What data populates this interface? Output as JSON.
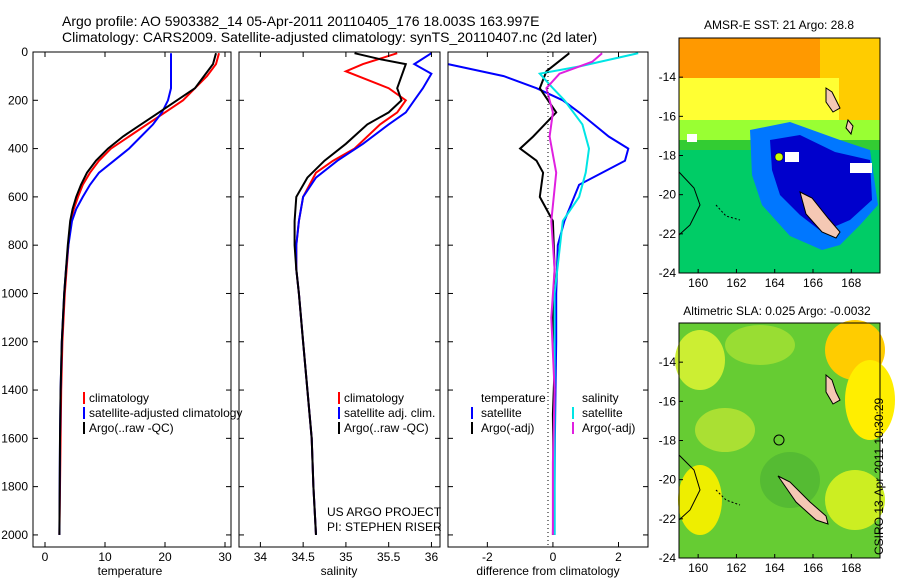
{
  "header": {
    "line1": "Argo profile: AO 5903382_14 05-Apr-2011 20110405_176 18.003S 163.997E",
    "line2": "Climatology: CARS2009. Satellite-adjusted climatology: synTS_20110407.nc (2d later)"
  },
  "credit": "CSIRO 13-Apr-2011 10:30:29",
  "colors": {
    "red": "#ff0000",
    "blue": "#0000ff",
    "black": "#000000",
    "cyan": "#00e5e5",
    "magenta": "#e020e0"
  },
  "chart_data": [
    {
      "type": "line",
      "id": "temperature",
      "xlabel": "temperature",
      "xlim": [
        -2,
        31
      ],
      "ylim": [
        2050,
        0
      ],
      "xticks": [
        0,
        10,
        20,
        30
      ],
      "yticks": [
        0,
        200,
        400,
        600,
        800,
        1000,
        1200,
        1400,
        1600,
        1800,
        2000
      ],
      "legend": [
        "climatology",
        "satellite-adjusted climatology",
        "Argo(..raw -QC)"
      ],
      "series": [
        {
          "name": "climatology",
          "color": "red",
          "x": [
            29,
            28.5,
            27,
            25,
            23,
            20,
            17,
            14,
            11,
            9,
            7.5,
            6.3,
            5.5,
            4.8,
            4.3,
            3.9,
            3.6,
            3.3,
            3.1,
            2.9,
            2.7,
            2.6,
            2.5,
            2.4
          ],
          "y": [
            5,
            50,
            100,
            150,
            200,
            250,
            300,
            350,
            400,
            450,
            500,
            550,
            600,
            650,
            700,
            800,
            900,
            1000,
            1100,
            1200,
            1400,
            1600,
            1800,
            2000
          ]
        },
        {
          "name": "satellite-adjusted climatology",
          "color": "blue",
          "x": [
            21,
            21,
            21,
            21,
            20.5,
            19.5,
            18,
            16,
            14,
            11.5,
            9,
            7.5,
            6.3,
            5.2,
            4.5,
            3.9,
            3.5,
            3.2,
            3,
            2.8,
            2.6,
            2.5,
            2.4
          ],
          "y": [
            5,
            50,
            100,
            150,
            200,
            250,
            300,
            350,
            400,
            450,
            500,
            550,
            600,
            650,
            700,
            800,
            900,
            1000,
            1100,
            1200,
            1400,
            1600,
            2000
          ]
        },
        {
          "name": "Argo(..raw -QC)",
          "color": "black",
          "x": [
            28.5,
            28,
            26.5,
            25,
            22,
            19,
            16,
            13,
            10.5,
            8.5,
            7,
            6,
            5.2,
            4.6,
            4.2,
            3.8,
            3.5,
            3.2,
            3,
            2.8,
            2.6,
            2.5,
            2.4
          ],
          "y": [
            5,
            50,
            100,
            150,
            200,
            250,
            300,
            350,
            400,
            450,
            500,
            550,
            600,
            650,
            700,
            800,
            900,
            1000,
            1100,
            1200,
            1400,
            1600,
            2000
          ]
        }
      ]
    },
    {
      "type": "line",
      "id": "salinity",
      "xlabel": "salinity",
      "xlim": [
        33.75,
        36.1
      ],
      "ylim": [
        2050,
        0
      ],
      "xticks": [
        34,
        34.5,
        35,
        35.5,
        36
      ],
      "yticks": [
        0,
        200,
        400,
        600,
        800,
        1000,
        1200,
        1400,
        1600,
        1800,
        2000
      ],
      "legend": [
        "climatology",
        "satellite adj. clim.",
        "Argo(..raw -QC)"
      ],
      "annotation": [
        "US ARGO PROJECT",
        "PI: STEPHEN RISER"
      ],
      "series": [
        {
          "name": "climatology",
          "color": "red",
          "x": [
            35.6,
            35.2,
            35,
            35.5,
            35.7,
            35.6,
            35.4,
            35.1,
            34.85,
            34.65,
            34.5,
            34.45,
            34.42,
            34.42,
            34.45,
            34.5,
            34.55,
            34.6,
            34.62,
            34.65
          ],
          "y": [
            5,
            50,
            80,
            150,
            200,
            250,
            300,
            400,
            450,
            500,
            600,
            700,
            800,
            900,
            1000,
            1200,
            1400,
            1600,
            1800,
            2000
          ]
        },
        {
          "name": "satellite adj. clim.",
          "color": "blue",
          "x": [
            36,
            35.8,
            36,
            35.9,
            35.8,
            35.7,
            35.5,
            35.2,
            34.9,
            34.65,
            34.5,
            34.45,
            34.42,
            34.42,
            34.45,
            34.5,
            34.55,
            34.6,
            34.62,
            34.65
          ],
          "y": [
            5,
            50,
            90,
            150,
            200,
            250,
            300,
            380,
            450,
            520,
            600,
            700,
            800,
            900,
            1000,
            1200,
            1400,
            1600,
            1800,
            2000
          ]
        },
        {
          "name": "Argo(..raw -QC)",
          "color": "black",
          "x": [
            35.1,
            35.4,
            35.7,
            35.6,
            35.65,
            35.5,
            35.25,
            35,
            34.75,
            34.55,
            34.42,
            34.4,
            34.4,
            34.42,
            34.45,
            34.5,
            34.55,
            34.6,
            34.62,
            34.65
          ],
          "y": [
            5,
            30,
            50,
            150,
            200,
            250,
            300,
            380,
            450,
            520,
            600,
            700,
            800,
            900,
            1000,
            1200,
            1400,
            1600,
            1800,
            2000
          ]
        }
      ]
    },
    {
      "type": "line",
      "id": "difference",
      "xlabel": "difference from climatology",
      "xlim": [
        -3.2,
        2.9
      ],
      "ylim": [
        2050,
        0
      ],
      "xticks": [
        -2,
        0,
        2
      ],
      "yticks": [
        0,
        200,
        400,
        600,
        800,
        1000,
        1200,
        1400,
        1600,
        1800,
        2000
      ],
      "legend_title_left": "temperature",
      "legend_title_right": "salinity",
      "legend": [
        "satellite",
        "Argo(-adj)",
        "satellite",
        "Argo(-adj)"
      ],
      "series": [
        {
          "name": "temperature satellite",
          "color": "blue",
          "x": [
            -3.2,
            -1.5,
            -0.5,
            0.3,
            0.8,
            1.7,
            2.3,
            2.2,
            1.5,
            0.8,
            0.35,
            0.15,
            0.1,
            0.1,
            0.08,
            0.06,
            0.05,
            0.05
          ],
          "y": [
            50,
            100,
            150,
            200,
            250,
            350,
            400,
            450,
            500,
            550,
            700,
            800,
            1000,
            1200,
            1400,
            1600,
            1800,
            2000
          ]
        },
        {
          "name": "temperature Argo(-adj)",
          "color": "black",
          "x": [
            0.5,
            -0.2,
            -0.4,
            0.1,
            -0.6,
            -1,
            -0.5,
            -0.3,
            -0.4,
            0,
            0.05,
            0,
            0.05,
            0,
            0.02,
            0
          ],
          "y": [
            5,
            80,
            150,
            250,
            350,
            400,
            450,
            500,
            600,
            700,
            900,
            1100,
            1300,
            1500,
            1800,
            2000
          ]
        },
        {
          "name": "salinity satellite",
          "color": "cyan",
          "x": [
            2.6,
            0.8,
            -0.4,
            0,
            0.35,
            0.9,
            1.1,
            1.0,
            0.9,
            0.8,
            0.3,
            0.05,
            0.05,
            0.05,
            0.05,
            0.05
          ],
          "y": [
            5,
            60,
            90,
            150,
            200,
            300,
            400,
            500,
            550,
            600,
            700,
            1000,
            1200,
            1400,
            1800,
            2000
          ]
        },
        {
          "name": "salinity Argo(-adj)",
          "color": "magenta",
          "x": [
            1.5,
            1.2,
            0.2,
            -0.2,
            0,
            -0.1,
            0.1,
            -0.05,
            0.05,
            -0.05,
            0.05,
            0,
            0
          ],
          "y": [
            5,
            40,
            90,
            150,
            250,
            350,
            500,
            700,
            900,
            1100,
            1400,
            1700,
            2000
          ]
        }
      ]
    },
    {
      "type": "heatmap",
      "id": "sst",
      "title": "AMSR-E SST: 21 Argo: 28.8",
      "xlim": [
        159,
        169.5
      ],
      "ylim": [
        -24,
        -12
      ],
      "xticks": [
        160,
        162,
        164,
        166,
        168
      ],
      "yticks": [
        -14,
        -16,
        -18,
        -20,
        -22,
        -24
      ]
    },
    {
      "type": "heatmap",
      "id": "sla",
      "title": "Altimetric SLA: 0.025 Argo: -0.0032",
      "xlim": [
        159,
        169.5
      ],
      "ylim": [
        -24,
        -12
      ],
      "xticks": [
        160,
        162,
        164,
        166,
        168
      ],
      "yticks": [
        -14,
        -16,
        -18,
        -20,
        -22,
        -24
      ]
    }
  ]
}
